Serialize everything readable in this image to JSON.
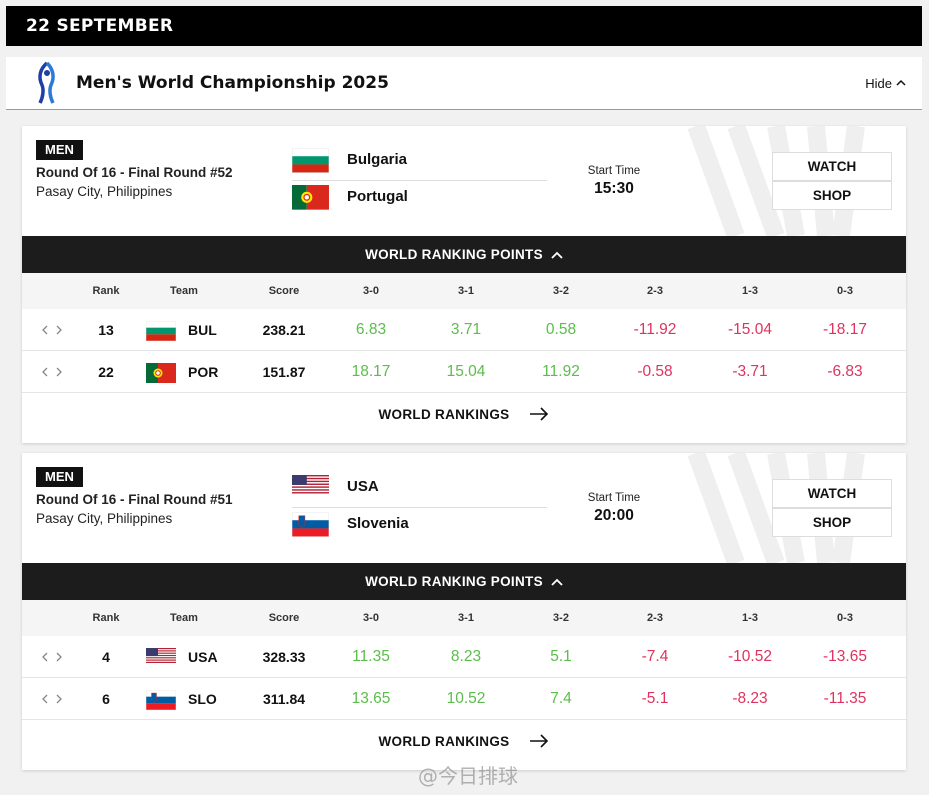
{
  "date_header": "22 SEPTEMBER",
  "competition": {
    "title": "Men's World Championship 2025",
    "hide_label": "Hide"
  },
  "colors": {
    "positive": "#5bbd4b",
    "negative": "#e0325e",
    "bar": "#1c1c1c"
  },
  "table_headers": {
    "rank": "Rank",
    "team": "Team",
    "score": "Score",
    "results": [
      "3-0",
      "3-1",
      "3-2",
      "2-3",
      "1-3",
      "0-3"
    ]
  },
  "matches": [
    {
      "badge": "MEN",
      "round": "Round Of 16 - Final Round #52",
      "venue": "Pasay City, Philippines",
      "team1": {
        "name": "Bulgaria",
        "flag": "bulgaria-flag"
      },
      "team2": {
        "name": "Portugal",
        "flag": "portugal-flag"
      },
      "start_label": "Start Time",
      "start_time": "15:30",
      "watch_label": "WATCH",
      "shop_label": "SHOP",
      "ranking_bar_label": "WORLD RANKING POINTS",
      "world_rankings_label": "WORLD RANKINGS",
      "rows": [
        {
          "rank": "13",
          "code": "BUL",
          "score": "238.21",
          "points": [
            "6.83",
            "3.71",
            "0.58",
            "-11.92",
            "-15.04",
            "-18.17"
          ]
        },
        {
          "rank": "22",
          "code": "POR",
          "score": "151.87",
          "points": [
            "18.17",
            "15.04",
            "11.92",
            "-0.58",
            "-3.71",
            "-6.83"
          ]
        }
      ]
    },
    {
      "badge": "MEN",
      "round": "Round Of 16 - Final Round #51",
      "venue": "Pasay City, Philippines",
      "team1": {
        "name": "USA",
        "flag": "usa-flag"
      },
      "team2": {
        "name": "Slovenia",
        "flag": "slovenia-flag"
      },
      "start_label": "Start Time",
      "start_time": "20:00",
      "watch_label": "WATCH",
      "shop_label": "SHOP",
      "ranking_bar_label": "WORLD RANKING POINTS",
      "world_rankings_label": "WORLD RANKINGS",
      "rows": [
        {
          "rank": "4",
          "code": "USA",
          "score": "328.33",
          "points": [
            "11.35",
            "8.23",
            "5.1",
            "-7.4",
            "-10.52",
            "-13.65"
          ]
        },
        {
          "rank": "6",
          "code": "SLO",
          "score": "311.84",
          "points": [
            "13.65",
            "10.52",
            "7.4",
            "-5.1",
            "-8.23",
            "-11.35"
          ]
        }
      ]
    }
  ],
  "watermark": "@今日排球"
}
